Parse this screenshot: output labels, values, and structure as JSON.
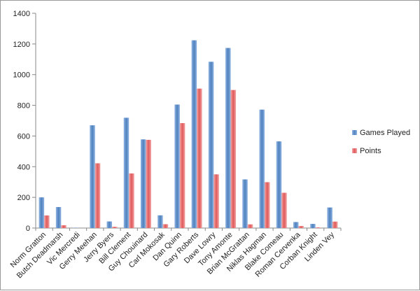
{
  "chart_data": {
    "type": "bar",
    "title": "",
    "xlabel": "",
    "ylabel": "",
    "ylim": [
      0,
      1400
    ],
    "yticks": [
      0,
      200,
      400,
      600,
      800,
      1000,
      1200,
      1400
    ],
    "grid": false,
    "legend_position": "right",
    "categories": [
      "Norm Gratton",
      "Butch Deadmarsh",
      "Vic Mercredi",
      "Gerry Meehan",
      "Jerry Byers",
      "Bill Clement",
      "Guy Chouinard",
      "Carl Mokosak",
      "Dan Quinn",
      "Gary Roberts",
      "Dave Lowry",
      "Tony Amonte",
      "Brian McGrattan",
      "Niklas Hagman",
      "Blake Comeau",
      "Roman Cervenka",
      "Corban Knight",
      "Linden Vey"
    ],
    "series": [
      {
        "name": "Games Played",
        "color": "#4f81bd",
        "values": [
          200,
          137,
          2,
          670,
          43,
          719,
          578,
          83,
          805,
          1224,
          1084,
          1174,
          317,
          772,
          565,
          39,
          27,
          134
        ]
      },
      {
        "name": "Points",
        "color": "#e05a5a",
        "values": [
          82,
          18,
          0,
          422,
          8,
          356,
          575,
          25,
          684,
          909,
          350,
          900,
          24,
          299,
          230,
          13,
          4,
          42
        ]
      }
    ]
  }
}
